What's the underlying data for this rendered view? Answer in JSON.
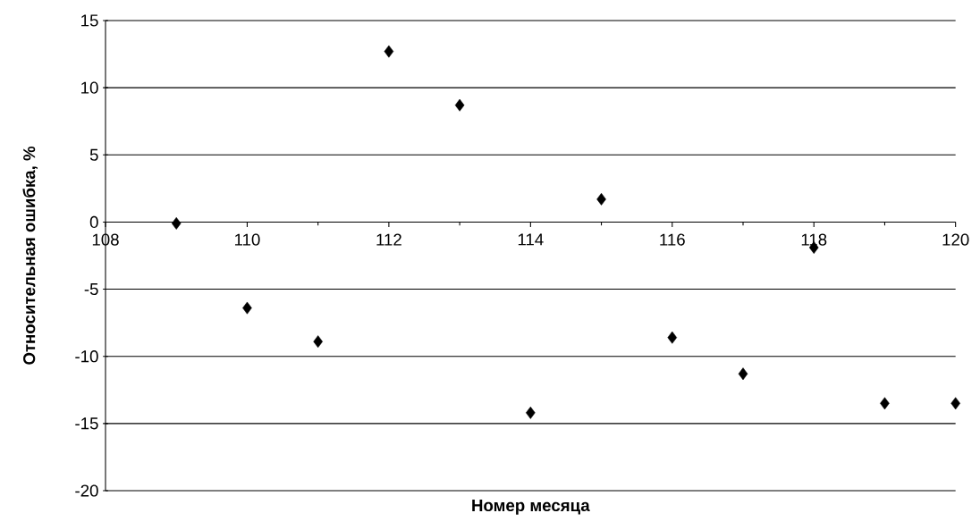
{
  "chart_data": {
    "type": "scatter",
    "xlabel": "Номер месяца",
    "ylabel": "Относительная ошибка, %",
    "x": [
      109,
      110,
      111,
      112,
      113,
      114,
      115,
      116,
      117,
      118,
      119,
      120
    ],
    "values": [
      -0.1,
      -6.4,
      -8.9,
      12.7,
      8.7,
      -14.2,
      1.7,
      -8.6,
      -11.3,
      -1.9,
      -13.5,
      -13.5
    ],
    "color": "#000000",
    "marker": "diamond",
    "grid": "y",
    "xlim": [
      108,
      120
    ],
    "xticks": [
      108,
      110,
      112,
      114,
      116,
      118,
      120
    ],
    "ylim": [
      -20,
      15
    ],
    "yticks": [
      -20,
      -15,
      -10,
      -5,
      0,
      5,
      10,
      15
    ]
  }
}
